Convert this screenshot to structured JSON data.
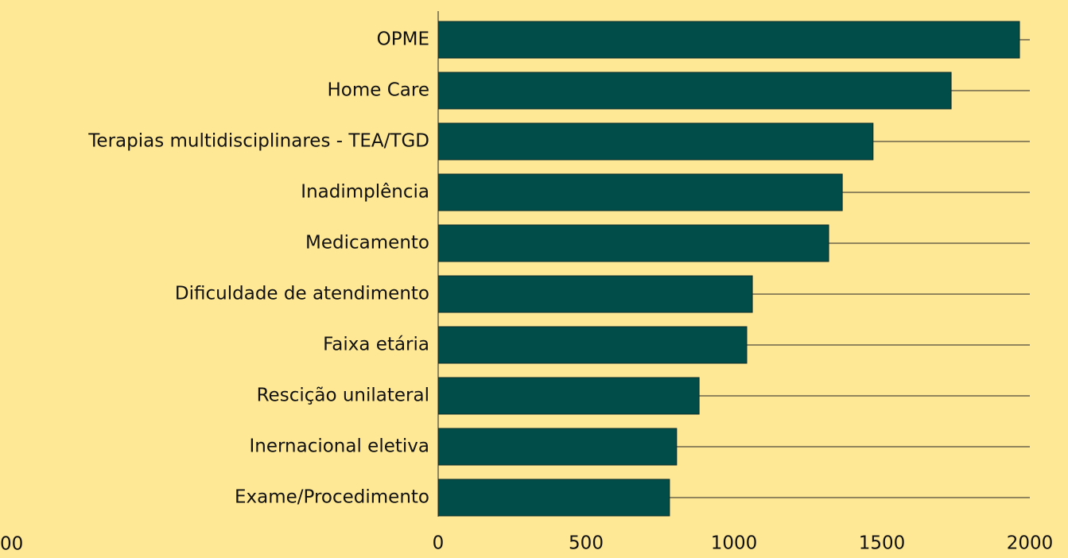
{
  "chart_data": {
    "type": "barh",
    "categories": [
      "OPME",
      "Home Care",
      "Terapias multidisciplinares - TEA/TGD",
      "Inadimplência",
      "Medicamento",
      "Dificuldade de atendimento",
      "Faixa etária",
      "Rescição unilateral",
      "Inernacional eletiva",
      "Exame/Procedimento"
    ],
    "values": [
      1965,
      1734,
      1470,
      1366,
      1320,
      1062,
      1043,
      882,
      806,
      782
    ],
    "color": "#004d4a",
    "xlim": [
      0,
      2000
    ],
    "xticks": [
      0,
      500,
      1000,
      1500,
      2000
    ],
    "annotations": [
      "00"
    ]
  }
}
